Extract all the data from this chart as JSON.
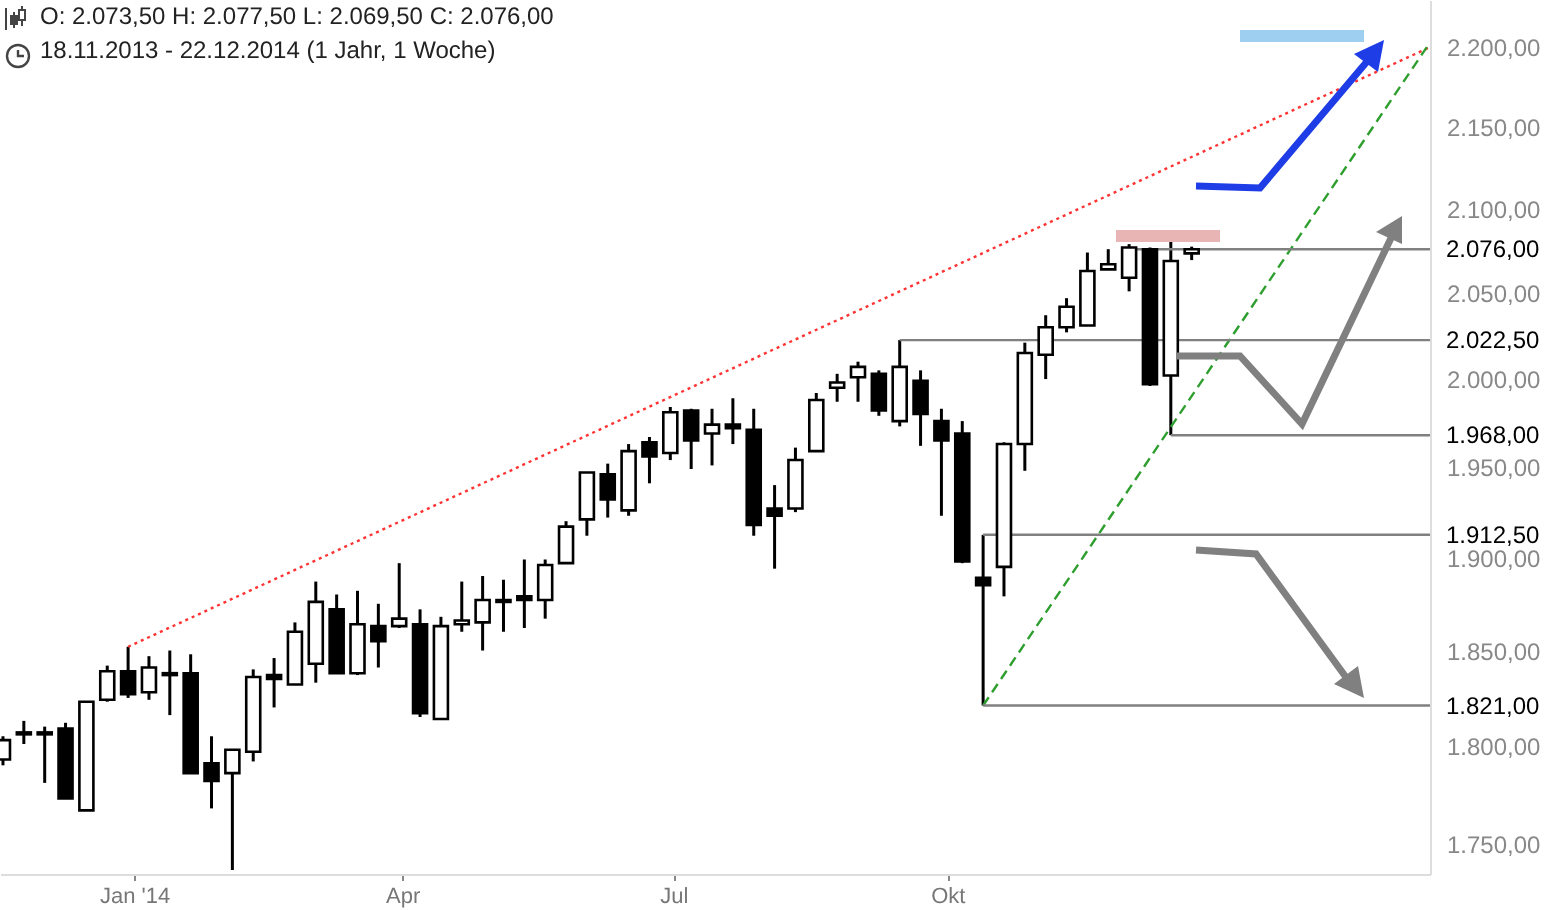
{
  "chart_data": {
    "type": "candlestick",
    "title": "O: 2.073,50  H: 2.077,50  L: 2.069,50  C: 2.076,00",
    "subtitle": "18.11.2013 - 22.12.2014 (1 Jahr, 1 Woche)",
    "x": [
      "2013-11-18",
      "2013-11-25",
      "2013-12-02",
      "2013-12-09",
      "2013-12-16",
      "2013-12-23",
      "2013-12-30",
      "2014-01-06",
      "2014-01-13",
      "2014-01-20",
      "2014-01-27",
      "2014-02-03",
      "2014-02-10",
      "2014-02-17",
      "2014-02-24",
      "2014-03-03",
      "2014-03-10",
      "2014-03-17",
      "2014-03-24",
      "2014-03-31",
      "2014-04-07",
      "2014-04-14",
      "2014-04-21",
      "2014-04-28",
      "2014-05-05",
      "2014-05-12",
      "2014-05-19",
      "2014-05-26",
      "2014-06-02",
      "2014-06-09",
      "2014-06-16",
      "2014-06-23",
      "2014-06-30",
      "2014-07-07",
      "2014-07-14",
      "2014-07-21",
      "2014-07-28",
      "2014-08-04",
      "2014-08-11",
      "2014-08-18",
      "2014-08-25",
      "2014-09-01",
      "2014-09-08",
      "2014-09-15",
      "2014-09-22",
      "2014-09-29",
      "2014-10-06",
      "2014-10-13",
      "2014-10-20",
      "2014-10-27",
      "2014-11-03",
      "2014-11-10",
      "2014-11-17",
      "2014-11-24",
      "2014-12-01",
      "2014-12-08",
      "2014-12-15",
      "2014-12-22"
    ],
    "ohlc": [
      [
        1793,
        1805,
        1790,
        1803
      ],
      [
        1807,
        1813,
        1801,
        1806
      ],
      [
        1807,
        1810,
        1781,
        1806
      ],
      [
        1809,
        1812,
        1773,
        1773
      ],
      [
        1767,
        1823,
        1767,
        1823
      ],
      [
        1824,
        1842,
        1823,
        1839
      ],
      [
        1839,
        1852,
        1825,
        1827
      ],
      [
        1828,
        1847,
        1824,
        1841
      ],
      [
        1838,
        1850,
        1816,
        1837
      ],
      [
        1838,
        1848,
        1786,
        1786
      ],
      [
        1791,
        1805,
        1768,
        1782
      ],
      [
        1786,
        1798,
        1737,
        1798
      ],
      [
        1797,
        1840,
        1792,
        1836
      ],
      [
        1837,
        1846,
        1820,
        1835
      ],
      [
        1832,
        1865,
        1832,
        1860
      ],
      [
        1843,
        1887,
        1833,
        1876
      ],
      [
        1872,
        1880,
        1838,
        1838
      ],
      [
        1838,
        1882,
        1837,
        1864
      ],
      [
        1863,
        1875,
        1841,
        1855
      ],
      [
        1863,
        1897,
        1862,
        1867
      ],
      [
        1864,
        1872,
        1815,
        1817
      ],
      [
        1814,
        1868,
        1814,
        1863
      ],
      [
        1864,
        1887,
        1860,
        1866
      ],
      [
        1865,
        1890,
        1850,
        1877
      ],
      [
        1876,
        1888,
        1860,
        1877
      ],
      [
        1879,
        1899,
        1862,
        1877
      ],
      [
        1877,
        1899,
        1867,
        1896
      ],
      [
        1897,
        1920,
        1897,
        1917
      ],
      [
        1921,
        1947,
        1912,
        1947
      ],
      [
        1946,
        1952,
        1922,
        1932
      ],
      [
        1926,
        1963,
        1923,
        1959
      ],
      [
        1964,
        1967,
        1941,
        1956
      ],
      [
        1958,
        1984,
        1954,
        1981
      ],
      [
        1982,
        1983,
        1949,
        1965
      ],
      [
        1969,
        1983,
        1951,
        1974
      ],
      [
        1974,
        1989,
        1963,
        1972
      ],
      [
        1971,
        1983,
        1912,
        1918
      ],
      [
        1927,
        1940,
        1894,
        1923
      ],
      [
        1927,
        1961,
        1925,
        1954
      ],
      [
        1959,
        1992,
        1959,
        1988
      ],
      [
        1995,
        2003,
        1987,
        1998
      ],
      [
        2001,
        2010,
        1987,
        2007
      ],
      [
        2003,
        2005,
        1979,
        1982
      ],
      [
        1976,
        2022.5,
        1973,
        2007
      ],
      [
        1999,
        2005,
        1962,
        1980
      ],
      [
        1976,
        1983,
        1923,
        1965
      ],
      [
        1969,
        1976,
        1897,
        1898
      ],
      [
        1889,
        1912.5,
        1821,
        1885
      ],
      [
        1895,
        1964,
        1879,
        1963
      ],
      [
        1963,
        2021,
        1948,
        2015
      ],
      [
        2014,
        2037,
        2000,
        2030
      ],
      [
        2030,
        2047,
        2027,
        2042
      ],
      [
        2031,
        2074,
        2031,
        2063
      ],
      [
        2064,
        2076,
        2064,
        2067
      ],
      [
        2059,
        2079,
        2051,
        2077
      ],
      [
        2076,
        2077,
        1996,
        1997
      ],
      [
        2002,
        2081,
        1968,
        2069
      ],
      [
        2073.5,
        2077.5,
        2069.5,
        2076
      ]
    ],
    "series": [
      {
        "type": "line",
        "x": [
          "2013-12-30",
          "2015-03-12"
        ],
        "values": [
          1852,
          2200
        ],
        "color": "#ff3333",
        "line_style": "dotted"
      },
      {
        "type": "line",
        "x": [
          "2014-10-13",
          "2015-03-12"
        ],
        "values": [
          1821,
          2203
        ],
        "color": "#2e9e2e",
        "line_style": "dashed"
      },
      {
        "type": "line",
        "x": [
          "2014-12-01",
          "2015-03-12"
        ],
        "values": [
          2076,
          2076
        ],
        "color": "#808080",
        "line_style": "solid"
      },
      {
        "type": "line",
        "x": [
          "2014-09-15",
          "2015-03-12"
        ],
        "values": [
          2022.5,
          2022.5
        ],
        "color": "#808080",
        "line_style": "solid"
      },
      {
        "type": "line",
        "x": [
          "2014-12-15",
          "2015-03-12"
        ],
        "values": [
          1968,
          1968
        ],
        "color": "#808080",
        "line_style": "solid"
      },
      {
        "type": "line",
        "x": [
          "2014-10-13",
          "2015-03-12"
        ],
        "values": [
          1912.5,
          1912.5
        ],
        "color": "#808080",
        "line_style": "solid"
      },
      {
        "type": "line",
        "x": [
          "2014-10-13",
          "2015-03-12"
        ],
        "values": [
          1821,
          1821
        ],
        "color": "#808080",
        "line_style": "solid"
      }
    ],
    "annotations": [
      {
        "text": "2.076,00",
        "x": "2015-03-12",
        "y": 2076
      },
      {
        "text": "2.022,50",
        "x": "2015-03-12",
        "y": 2022.5
      },
      {
        "text": "1.968,00",
        "x": "2015-03-12",
        "y": 1968
      },
      {
        "text": "1.912,50",
        "x": "2015-03-12",
        "y": 1912.5
      },
      {
        "text": "1.821,00",
        "x": "2015-03-12",
        "y": 1821
      }
    ],
    "xlim": [
      "2013-11-17",
      "2015-03-12"
    ],
    "xticks": [
      {
        "value": "2014-01-01",
        "label": "Jan '14"
      },
      {
        "value": "2014-04-01",
        "label": "Apr"
      },
      {
        "value": "2014-07-01",
        "label": "Jul"
      },
      {
        "value": "2014-10-01",
        "label": "Okt"
      }
    ],
    "ylim": [
      1735,
      2230
    ],
    "log": true,
    "yticks": [
      {
        "value": 1750,
        "label": "1.750,00"
      },
      {
        "value": 1800,
        "label": "1.800,00"
      },
      {
        "value": 1850,
        "label": "1.850,00"
      },
      {
        "value": 1900,
        "label": "1.900,00"
      },
      {
        "value": 1950,
        "label": "1.950,00"
      },
      {
        "value": 2000,
        "label": "2.000,00"
      },
      {
        "value": 2050,
        "label": "2.050,00"
      },
      {
        "value": 2100,
        "label": "2.100,00"
      },
      {
        "value": 2150,
        "label": "2.150,00"
      },
      {
        "value": 2200,
        "label": "2.200,00"
      }
    ]
  }
}
